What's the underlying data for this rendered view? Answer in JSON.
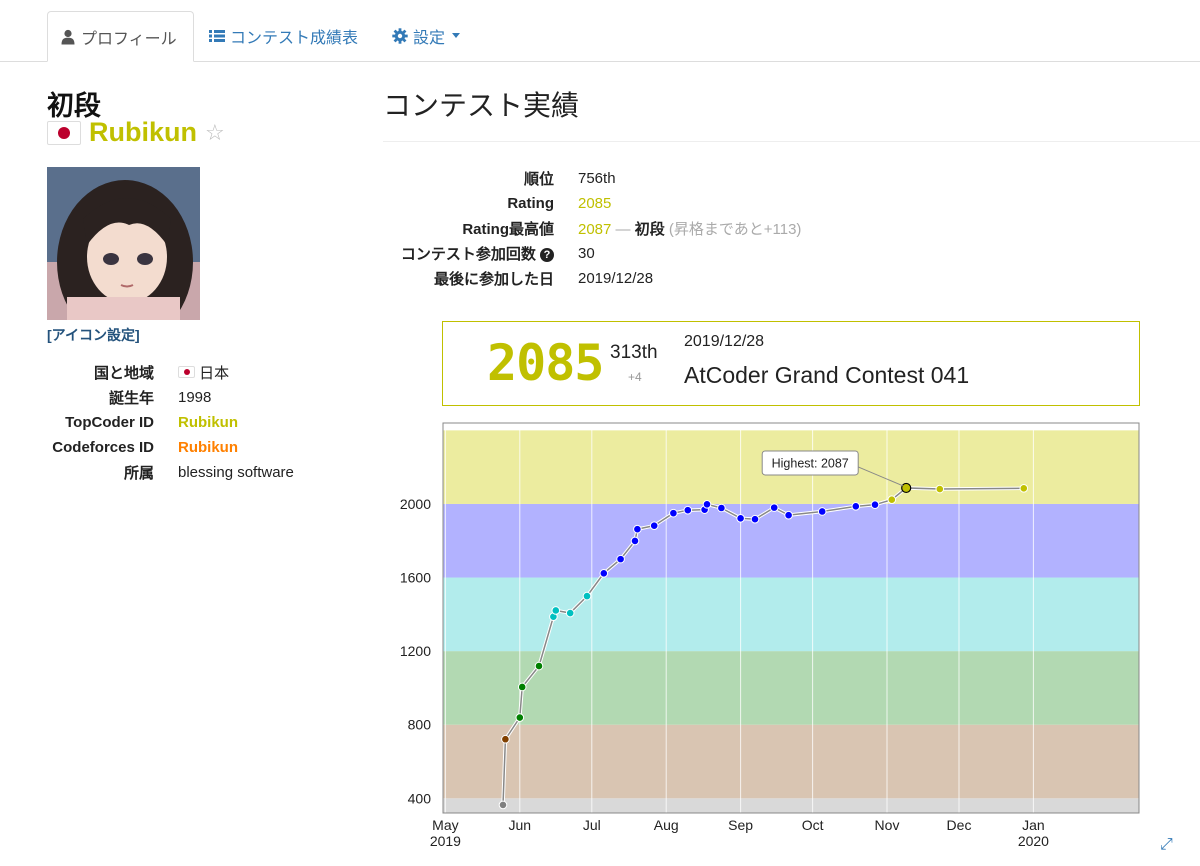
{
  "tabs": [
    {
      "label": "プロフィール",
      "icon": "user-icon",
      "active": true
    },
    {
      "label": "コンテスト成績表",
      "icon": "list-icon",
      "active": false
    },
    {
      "label": "設定",
      "icon": "gear-icon",
      "active": false
    }
  ],
  "profile": {
    "rank_title": "初段",
    "username": "Rubikun",
    "icon_setting": "[アイコン設定]",
    "info": [
      {
        "key": "国と地域",
        "value": "日本"
      },
      {
        "key": "誕生年",
        "value": "1998"
      },
      {
        "key": "TopCoder ID",
        "value": "Rubikun"
      },
      {
        "key": "Codeforces ID",
        "value": "Rubikun"
      },
      {
        "key": "所属",
        "value": "blessing software"
      }
    ]
  },
  "contest": {
    "title": "コンテスト実績",
    "stats": [
      {
        "key": "順位",
        "value": "756th"
      },
      {
        "key": "Rating",
        "value": "2085"
      },
      {
        "key": "Rating最高値",
        "value": "2087",
        "sep": "—",
        "rank": "初段",
        "note": "(昇格まであと+113)"
      },
      {
        "key": "コンテスト参加回数",
        "value": "30"
      },
      {
        "key": "最後に参加した日",
        "value": "2019/12/28"
      }
    ],
    "latest": {
      "rating": "2085",
      "place": "313th",
      "diff": "+4",
      "date": "2019/12/28",
      "contest": "AtCoder Grand Contest 041"
    }
  },
  "colors": {
    "gray": "#808080",
    "brown": "#804000",
    "green": "#008000",
    "cyan": "#00c0c0",
    "blue": "#0000ff",
    "yellow": "#c0c000",
    "orange": "#ff8000",
    "link": "#337ab7"
  },
  "chart_data": {
    "type": "line",
    "ylim": [
      320,
      2440
    ],
    "yticks": [
      400,
      800,
      1200,
      1600,
      2000
    ],
    "x_months": [
      "2019-05-01",
      "2019-06-01",
      "2019-07-01",
      "2019-08-01",
      "2019-09-01",
      "2019-10-01",
      "2019-11-01",
      "2019-12-01",
      "2020-01-01"
    ],
    "x_tick_labels": [
      {
        "month": "May",
        "year": "2019"
      },
      {
        "month": "Jun",
        "year": ""
      },
      {
        "month": "Jul",
        "year": ""
      },
      {
        "month": "Aug",
        "year": ""
      },
      {
        "month": "Sep",
        "year": ""
      },
      {
        "month": "Oct",
        "year": ""
      },
      {
        "month": "Nov",
        "year": ""
      },
      {
        "month": "Dec",
        "year": ""
      },
      {
        "month": "Jan",
        "year": "2020"
      }
    ],
    "xlim": [
      "2019-04-30",
      "2020-02-14"
    ],
    "bands": [
      {
        "from": 0,
        "to": 400,
        "color": "#d9d9d9"
      },
      {
        "from": 400,
        "to": 800,
        "color": "#d9c5b2"
      },
      {
        "from": 800,
        "to": 1200,
        "color": "#b2d9b2"
      },
      {
        "from": 1200,
        "to": 1600,
        "color": "#b2ecec"
      },
      {
        "from": 1600,
        "to": 2000,
        "color": "#b2b2ff"
      },
      {
        "from": 2000,
        "to": 2400,
        "color": "#ecec9f"
      }
    ],
    "points": [
      {
        "date": "2019-05-25",
        "rating": 364
      },
      {
        "date": "2019-05-26",
        "rating": 721
      },
      {
        "date": "2019-06-01",
        "rating": 839
      },
      {
        "date": "2019-06-02",
        "rating": 1005
      },
      {
        "date": "2019-06-09",
        "rating": 1119
      },
      {
        "date": "2019-06-15",
        "rating": 1387
      },
      {
        "date": "2019-06-16",
        "rating": 1421
      },
      {
        "date": "2019-06-22",
        "rating": 1407
      },
      {
        "date": "2019-06-29",
        "rating": 1499
      },
      {
        "date": "2019-07-06",
        "rating": 1623
      },
      {
        "date": "2019-07-13",
        "rating": 1700
      },
      {
        "date": "2019-07-19",
        "rating": 1799
      },
      {
        "date": "2019-07-20",
        "rating": 1863
      },
      {
        "date": "2019-07-27",
        "rating": 1882
      },
      {
        "date": "2019-08-04",
        "rating": 1950
      },
      {
        "date": "2019-08-10",
        "rating": 1966
      },
      {
        "date": "2019-08-17",
        "rating": 1969
      },
      {
        "date": "2019-08-18",
        "rating": 1998
      },
      {
        "date": "2019-08-24",
        "rating": 1978
      },
      {
        "date": "2019-09-01",
        "rating": 1922
      },
      {
        "date": "2019-09-07",
        "rating": 1917
      },
      {
        "date": "2019-09-15",
        "rating": 1980
      },
      {
        "date": "2019-09-21",
        "rating": 1939
      },
      {
        "date": "2019-10-05",
        "rating": 1959
      },
      {
        "date": "2019-10-19",
        "rating": 1987
      },
      {
        "date": "2019-10-27",
        "rating": 1996
      },
      {
        "date": "2019-11-03",
        "rating": 2023
      },
      {
        "date": "2019-11-09",
        "rating": 2087
      },
      {
        "date": "2019-11-23",
        "rating": 2081
      },
      {
        "date": "2019-12-28",
        "rating": 2085
      }
    ],
    "highest": {
      "label": "Highest: 2087",
      "rating": 2087,
      "date": "2019-11-09"
    }
  }
}
